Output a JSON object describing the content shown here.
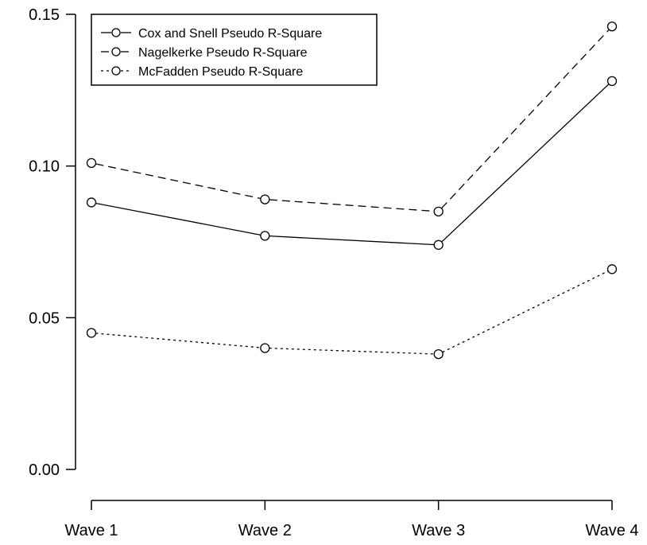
{
  "chart_data": {
    "type": "line",
    "title": "",
    "xlabel": "",
    "ylabel": "",
    "categories": [
      "Wave 1",
      "Wave 2",
      "Wave 3",
      "Wave 4"
    ],
    "ylim": [
      0,
      0.15
    ],
    "yticks": [
      "0.00",
      "0.05",
      "0.10",
      "0.15"
    ],
    "grid": false,
    "legend_position": "top-left",
    "series": [
      {
        "name": "Cox and Snell Pseudo R-Square",
        "line_style": "solid",
        "values": [
          0.088,
          0.077,
          0.074,
          0.128
        ]
      },
      {
        "name": "Nagelkerke Pseudo R-Square",
        "line_style": "dashed",
        "values": [
          0.101,
          0.089,
          0.085,
          0.146
        ]
      },
      {
        "name": "McFadden Pseudo R-Square",
        "line_style": "dotted",
        "values": [
          0.045,
          0.04,
          0.038,
          0.066
        ]
      }
    ],
    "marker": "open-circle",
    "color": "#000000"
  }
}
